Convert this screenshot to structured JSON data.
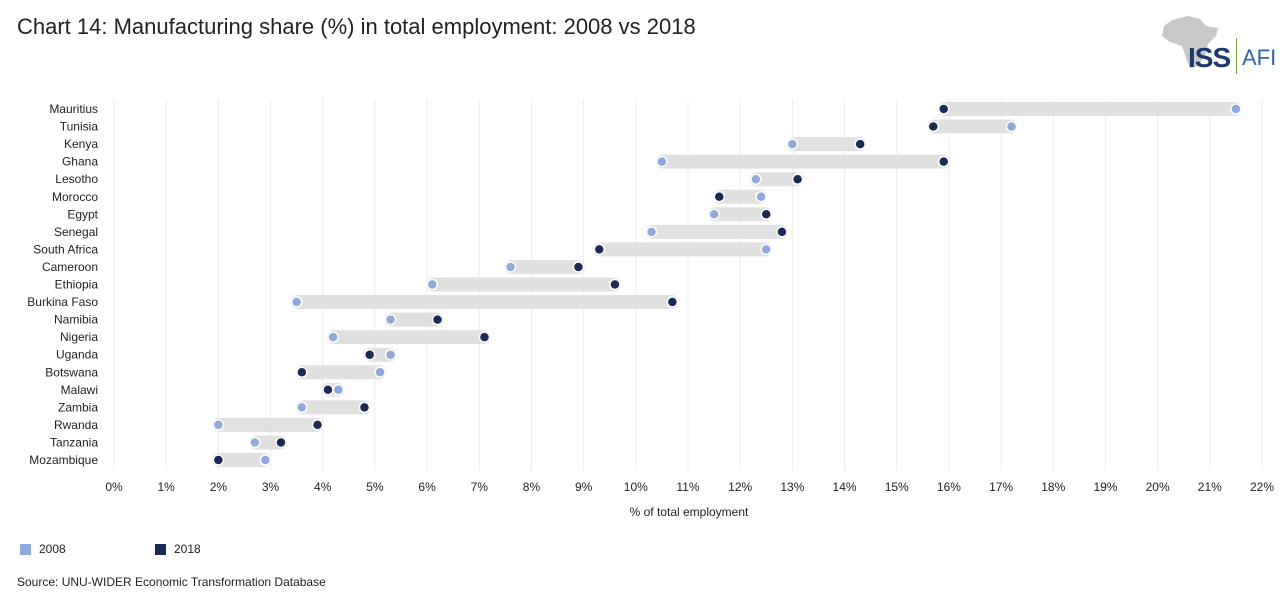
{
  "title": "Chart 14: Manufacturing share (%) in total employment: 2008 vs 2018",
  "logo": {
    "text": "ISS",
    "sub": "AFI"
  },
  "source": "Source: UNU-WIDER Economic Transformation Database",
  "colors": {
    "y2008": "#8ea9dc",
    "y2018": "#1b2a56",
    "range": "#e0e0e0",
    "grid": "#ececec"
  },
  "chart_data": {
    "type": "dumbbell",
    "title": "Chart 14: Manufacturing share (%) in total employment: 2008 vs 2018",
    "xlabel": "% of total employment",
    "ylabel": "",
    "xlim": [
      0,
      22
    ],
    "xticks": [
      "0%",
      "1%",
      "2%",
      "3%",
      "4%",
      "5%",
      "6%",
      "7%",
      "8%",
      "9%",
      "10%",
      "11%",
      "12%",
      "13%",
      "14%",
      "15%",
      "16%",
      "17%",
      "18%",
      "19%",
      "20%",
      "21%",
      "22%"
    ],
    "categories": [
      "Mauritius",
      "Tunisia",
      "Kenya",
      "Ghana",
      "Lesotho",
      "Morocco",
      "Egypt",
      "Senegal",
      "South Africa",
      "Cameroon",
      "Ethiopia",
      "Burkina Faso",
      "Namibia",
      "Nigeria",
      "Uganda",
      "Botswana",
      "Malawi",
      "Zambia",
      "Rwanda",
      "Tanzania",
      "Mozambique"
    ],
    "series": [
      {
        "name": "2008",
        "values": [
          21.5,
          17.2,
          13.0,
          10.5,
          12.3,
          12.4,
          11.5,
          10.3,
          12.5,
          7.6,
          6.1,
          3.5,
          5.3,
          4.2,
          5.3,
          5.1,
          4.3,
          3.6,
          2.0,
          2.7,
          2.9
        ]
      },
      {
        "name": "2018",
        "values": [
          15.9,
          15.7,
          14.3,
          15.9,
          13.1,
          11.6,
          12.5,
          12.8,
          9.3,
          8.9,
          9.6,
          10.7,
          6.2,
          7.1,
          4.9,
          3.6,
          4.1,
          4.8,
          3.9,
          3.2,
          2.0
        ]
      }
    ],
    "legend": [
      {
        "label": "2008"
      },
      {
        "label": "2018"
      }
    ],
    "legend_position": "bottom-left",
    "grid": true
  }
}
